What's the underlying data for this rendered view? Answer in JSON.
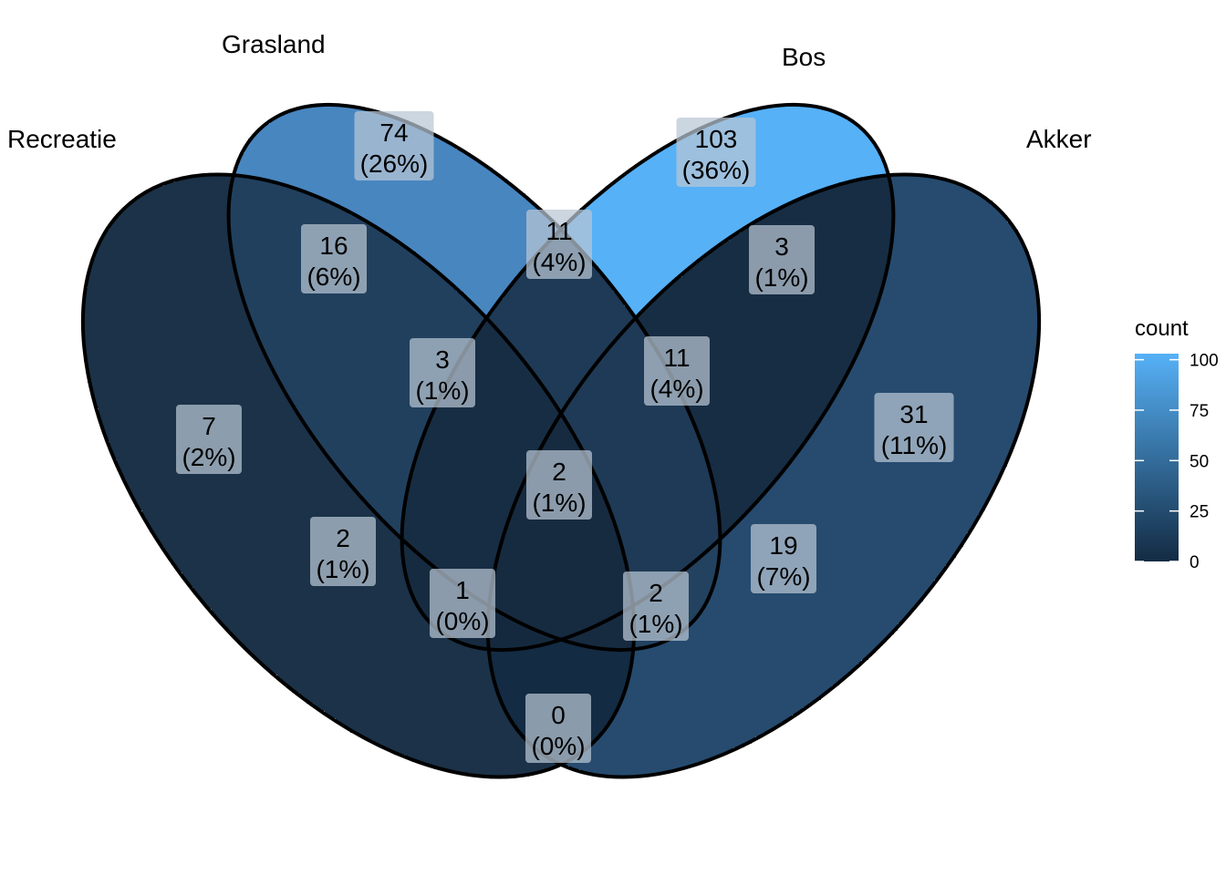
{
  "sets": [
    {
      "name": "Recreatie",
      "count": 7
    },
    {
      "name": "Grasland",
      "count": 74
    },
    {
      "name": "Bos",
      "count": 103
    },
    {
      "name": "Akker",
      "count": 31
    }
  ],
  "regions": [
    {
      "id": "recreatie-only",
      "sets": [
        "Recreatie"
      ],
      "count": "7",
      "percent": "(2%)",
      "fill": "#1b3248"
    },
    {
      "id": "grasland-only",
      "sets": [
        "Grasland"
      ],
      "count": "74",
      "percent": "(26%)",
      "fill": "#4886c0"
    },
    {
      "id": "bos-only",
      "sets": [
        "Bos"
      ],
      "count": "103",
      "percent": "(36%)",
      "fill": "#56b1f7"
    },
    {
      "id": "akker-only",
      "sets": [
        "Akker"
      ],
      "count": "31",
      "percent": "(11%)",
      "fill": "#264b6f"
    },
    {
      "id": "recreatie-grasland",
      "sets": [
        "Recreatie",
        "Grasland"
      ],
      "count": "16",
      "percent": "(6%)",
      "fill": "#21405e"
    },
    {
      "id": "grasland-bos",
      "sets": [
        "Grasland",
        "Bos"
      ],
      "count": "11",
      "percent": "(4%)",
      "fill": "#1e3a56"
    },
    {
      "id": "bos-akker",
      "sets": [
        "Bos",
        "Akker"
      ],
      "count": "3",
      "percent": "(1%)",
      "fill": "#172d43"
    },
    {
      "id": "recreatie-grasland-bos",
      "sets": [
        "Recreatie",
        "Grasland",
        "Bos"
      ],
      "count": "3",
      "percent": "(1%)",
      "fill": "#172d43"
    },
    {
      "id": "grasland-bos-akker",
      "sets": [
        "Grasland",
        "Bos",
        "Akker"
      ],
      "count": "11",
      "percent": "(4%)",
      "fill": "#1e3a56"
    },
    {
      "id": "recreatie-bos",
      "sets": [
        "Recreatie",
        "Bos"
      ],
      "count": "2",
      "percent": "(1%)",
      "fill": "#162b40"
    },
    {
      "id": "all-four",
      "sets": [
        "Recreatie",
        "Grasland",
        "Bos",
        "Akker"
      ],
      "count": "2",
      "percent": "(1%)",
      "fill": "#162b40"
    },
    {
      "id": "grasland-akker",
      "sets": [
        "Grasland",
        "Akker"
      ],
      "count": "19",
      "percent": "(7%)",
      "fill": "#22425f"
    },
    {
      "id": "recreatie-bos-akker",
      "sets": [
        "Recreatie",
        "Bos",
        "Akker"
      ],
      "count": "1",
      "percent": "(0%)",
      "fill": "#15293e"
    },
    {
      "id": "recreatie-grasland-akker",
      "sets": [
        "Recreatie",
        "Grasland",
        "Akker"
      ],
      "count": "2",
      "percent": "(1%)",
      "fill": "#162b40"
    },
    {
      "id": "recreatie-akker",
      "sets": [
        "Recreatie",
        "Akker"
      ],
      "count": "0",
      "percent": "(0%)",
      "fill": "#132b43"
    }
  ],
  "legend": {
    "title": "count",
    "ticks": [
      "100",
      "75",
      "50",
      "25",
      "0"
    ],
    "low_color": "#132b43",
    "high_color": "#56b1f7",
    "range": [
      0,
      103
    ]
  },
  "colors": {
    "outline": "#000000",
    "label_box": "#b8c6d4",
    "background": "#ffffff"
  }
}
